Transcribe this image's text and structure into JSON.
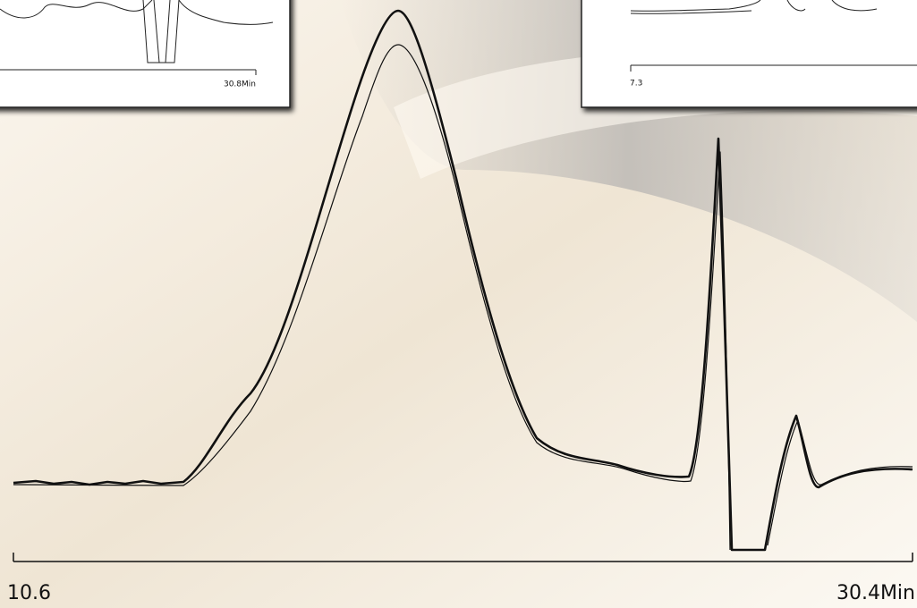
{
  "inset_left": {
    "axis_end_label": "30.8Min"
  },
  "inset_right": {
    "axis_start_label": "7.3"
  },
  "main_axis": {
    "start_label": "10.6",
    "end_label": "30.4Min"
  }
}
